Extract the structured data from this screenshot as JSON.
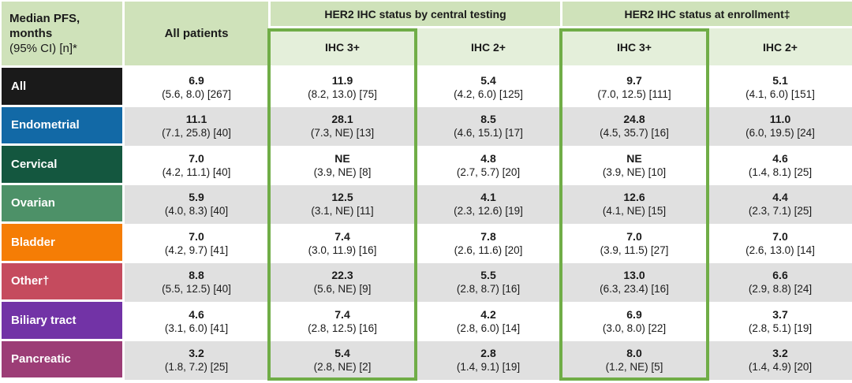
{
  "header": {
    "corner_line1": "Median PFS,",
    "corner_line2": "months",
    "corner_line3": "(95% CI) [n]*",
    "all_patients": "All patients",
    "group_central": "HER2 IHC status by central testing",
    "group_enrollment": "HER2 IHC status at enrollment‡",
    "sub_central_ihc3": "IHC 3+",
    "sub_central_ihc2": "IHC 2+",
    "sub_enroll_ihc3": "IHC 3+",
    "sub_enroll_ihc2": "IHC 2+"
  },
  "colors": {
    "header_green": "#cfe2ba",
    "subheader_green": "#e4efda",
    "highlight_green": "#70ad47",
    "stripe_gray": "#e0e0e0"
  },
  "rows": [
    {
      "label": "All",
      "color": "#1a1a1a",
      "cells": [
        {
          "value": "6.9",
          "ci": "(5.6, 8.0) [267]"
        },
        {
          "value": "11.9",
          "ci": "(8.2, 13.0) [75]"
        },
        {
          "value": "5.4",
          "ci": "(4.2, 6.0) [125]"
        },
        {
          "value": "9.7",
          "ci": "(7.0, 12.5) [111]"
        },
        {
          "value": "5.1",
          "ci": "(4.1, 6.0) [151]"
        }
      ]
    },
    {
      "label": "Endometrial",
      "color": "#1269a6",
      "cells": [
        {
          "value": "11.1",
          "ci": "(7.1, 25.8) [40]"
        },
        {
          "value": "28.1",
          "ci": "(7.3, NE) [13]"
        },
        {
          "value": "8.5",
          "ci": "(4.6, 15.1) [17]"
        },
        {
          "value": "24.8",
          "ci": "(4.5, 35.7) [16]"
        },
        {
          "value": "11.0",
          "ci": "(6.0, 19.5) [24]"
        }
      ]
    },
    {
      "label": "Cervical",
      "color": "#14573f",
      "cells": [
        {
          "value": "7.0",
          "ci": "(4.2, 11.1) [40]"
        },
        {
          "value": "NE",
          "ci": "(3.9, NE) [8]"
        },
        {
          "value": "4.8",
          "ci": "(2.7, 5.7) [20]"
        },
        {
          "value": "NE",
          "ci": "(3.9, NE) [10]"
        },
        {
          "value": "4.6",
          "ci": "(1.4, 8.1) [25]"
        }
      ]
    },
    {
      "label": "Ovarian",
      "color": "#4d9168",
      "cells": [
        {
          "value": "5.9",
          "ci": "(4.0, 8.3) [40]"
        },
        {
          "value": "12.5",
          "ci": "(3.1, NE) [11]"
        },
        {
          "value": "4.1",
          "ci": "(2.3, 12.6) [19]"
        },
        {
          "value": "12.6",
          "ci": "(4.1, NE) [15]"
        },
        {
          "value": "4.4",
          "ci": "(2.3, 7.1) [25]"
        }
      ]
    },
    {
      "label": "Bladder",
      "color": "#f57d05",
      "cells": [
        {
          "value": "7.0",
          "ci": "(4.2, 9.7) [41]"
        },
        {
          "value": "7.4",
          "ci": "(3.0, 11.9) [16]"
        },
        {
          "value": "7.8",
          "ci": "(2.6, 11.6) [20]"
        },
        {
          "value": "7.0",
          "ci": "(3.9, 11.5) [27]"
        },
        {
          "value": "7.0",
          "ci": "(2.6, 13.0) [14]"
        }
      ]
    },
    {
      "label": "Other†",
      "color": "#c54b5e",
      "cells": [
        {
          "value": "8.8",
          "ci": "(5.5, 12.5) [40]"
        },
        {
          "value": "22.3",
          "ci": "(5.6, NE) [9]"
        },
        {
          "value": "5.5",
          "ci": "(2.8, 8.7) [16]"
        },
        {
          "value": "13.0",
          "ci": "(6.3, 23.4) [16]"
        },
        {
          "value": "6.6",
          "ci": "(2.9, 8.8) [24]"
        }
      ]
    },
    {
      "label": "Biliary tract",
      "color": "#7233a6",
      "cells": [
        {
          "value": "4.6",
          "ci": "(3.1, 6.0) [41]"
        },
        {
          "value": "7.4",
          "ci": "(2.8, 12.5) [16]"
        },
        {
          "value": "4.2",
          "ci": "(2.8, 6.0) [14]"
        },
        {
          "value": "6.9",
          "ci": "(3.0, 8.0) [22]"
        },
        {
          "value": "3.7",
          "ci": "(2.8, 5.1) [19]"
        }
      ]
    },
    {
      "label": "Pancreatic",
      "color": "#9c3d76",
      "cells": [
        {
          "value": "3.2",
          "ci": "(1.8, 7.2) [25]"
        },
        {
          "value": "5.4",
          "ci": "(2.8, NE) [2]"
        },
        {
          "value": "2.8",
          "ci": "(1.4, 9.1) [19]"
        },
        {
          "value": "8.0",
          "ci": "(1.2, NE) [5]"
        },
        {
          "value": "3.2",
          "ci": "(1.4, 4.9) [20]"
        }
      ]
    }
  ]
}
